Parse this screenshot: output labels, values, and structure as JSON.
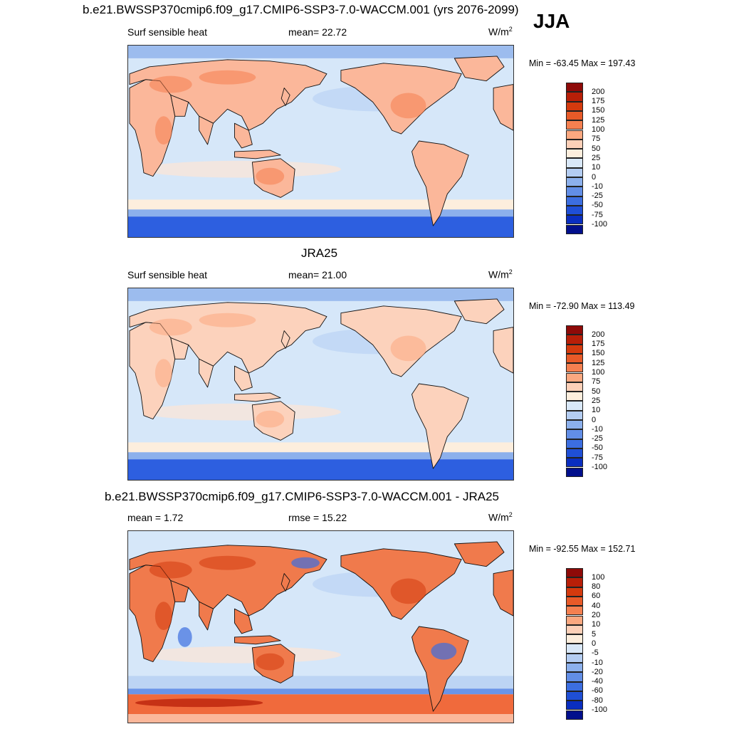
{
  "season": "JJA",
  "panels": [
    {
      "title": "b.e21.BWSSP370cmip6.f09_g17.CMIP6-SSP3-7.0-WACCM.001 (yrs 2076-2099)",
      "left_label": "Surf sensible heat",
      "center_label": "mean=  22.72",
      "units_base": "W/m",
      "units_sup": "2",
      "minmax": "Min = -63.45 Max = 197.43",
      "colorbar": {
        "ticks": [
          "200",
          "175",
          "150",
          "125",
          "100",
          "75",
          "50",
          "25",
          "10",
          "0",
          "-10",
          "-25",
          "-50",
          "-75",
          "-100"
        ],
        "colors": [
          "#8e0a08",
          "#b81f08",
          "#d43a0e",
          "#e85a28",
          "#f58050",
          "#fba880",
          "#fdd0b8",
          "#fdeedd",
          "#d9e8f8",
          "#b4cdf2",
          "#8cb0ec",
          "#628ee6",
          "#3c6ee0",
          "#1f4fd6",
          "#0a2ec0",
          "#020f8c"
        ]
      },
      "map": {
        "ocean_color": "#d6e7f9",
        "land_color": "#fbb79a",
        "south_band": "#2d5fe0",
        "north_band": "#9cbcee"
      }
    },
    {
      "title": "JRA25",
      "left_label": "Surf sensible heat",
      "center_label": "mean=  21.00",
      "units_base": "W/m",
      "units_sup": "2",
      "minmax": "Min = -72.90 Max = 113.49",
      "colorbar": {
        "ticks": [
          "200",
          "175",
          "150",
          "125",
          "100",
          "75",
          "50",
          "25",
          "10",
          "0",
          "-10",
          "-25",
          "-50",
          "-75",
          "-100"
        ],
        "colors": [
          "#8e0a08",
          "#b81f08",
          "#d43a0e",
          "#e85a28",
          "#f58050",
          "#fba880",
          "#fdd0b8",
          "#fdeedd",
          "#d9e8f8",
          "#b4cdf2",
          "#8cb0ec",
          "#628ee6",
          "#3c6ee0",
          "#1f4fd6",
          "#0a2ec0",
          "#020f8c"
        ]
      },
      "map": {
        "ocean_color": "#d6e7f9",
        "land_color": "#fcd2bc",
        "south_band": "#2d5fe0",
        "north_band": "#9cbcee"
      }
    },
    {
      "title": "b.e21.BWSSP370cmip6.f09_g17.CMIP6-SSP3-7.0-WACCM.001 - JRA25",
      "left_label": "mean =   1.72",
      "center_label": "rmse =  15.22",
      "units_base": "W/m",
      "units_sup": "2",
      "minmax": "Min = -92.55 Max = 152.71",
      "colorbar": {
        "ticks": [
          "100",
          "80",
          "60",
          "40",
          "20",
          "10",
          "5",
          "0",
          "-5",
          "-10",
          "-20",
          "-40",
          "-60",
          "-80",
          "-100"
        ],
        "colors": [
          "#8e0a08",
          "#b81f08",
          "#d43a0e",
          "#e85a28",
          "#f58050",
          "#fba880",
          "#fdd0b8",
          "#fdeedd",
          "#d9e8f8",
          "#b4cdf2",
          "#8cb0ec",
          "#628ee6",
          "#3c6ee0",
          "#1f4fd6",
          "#0a2ec0",
          "#020f8c"
        ]
      },
      "map": {
        "ocean_color": "#d6e7f9",
        "land_color": "#f07a4c",
        "south_band": "#f06a3c",
        "north_band": "#d6e7f9"
      }
    }
  ]
}
